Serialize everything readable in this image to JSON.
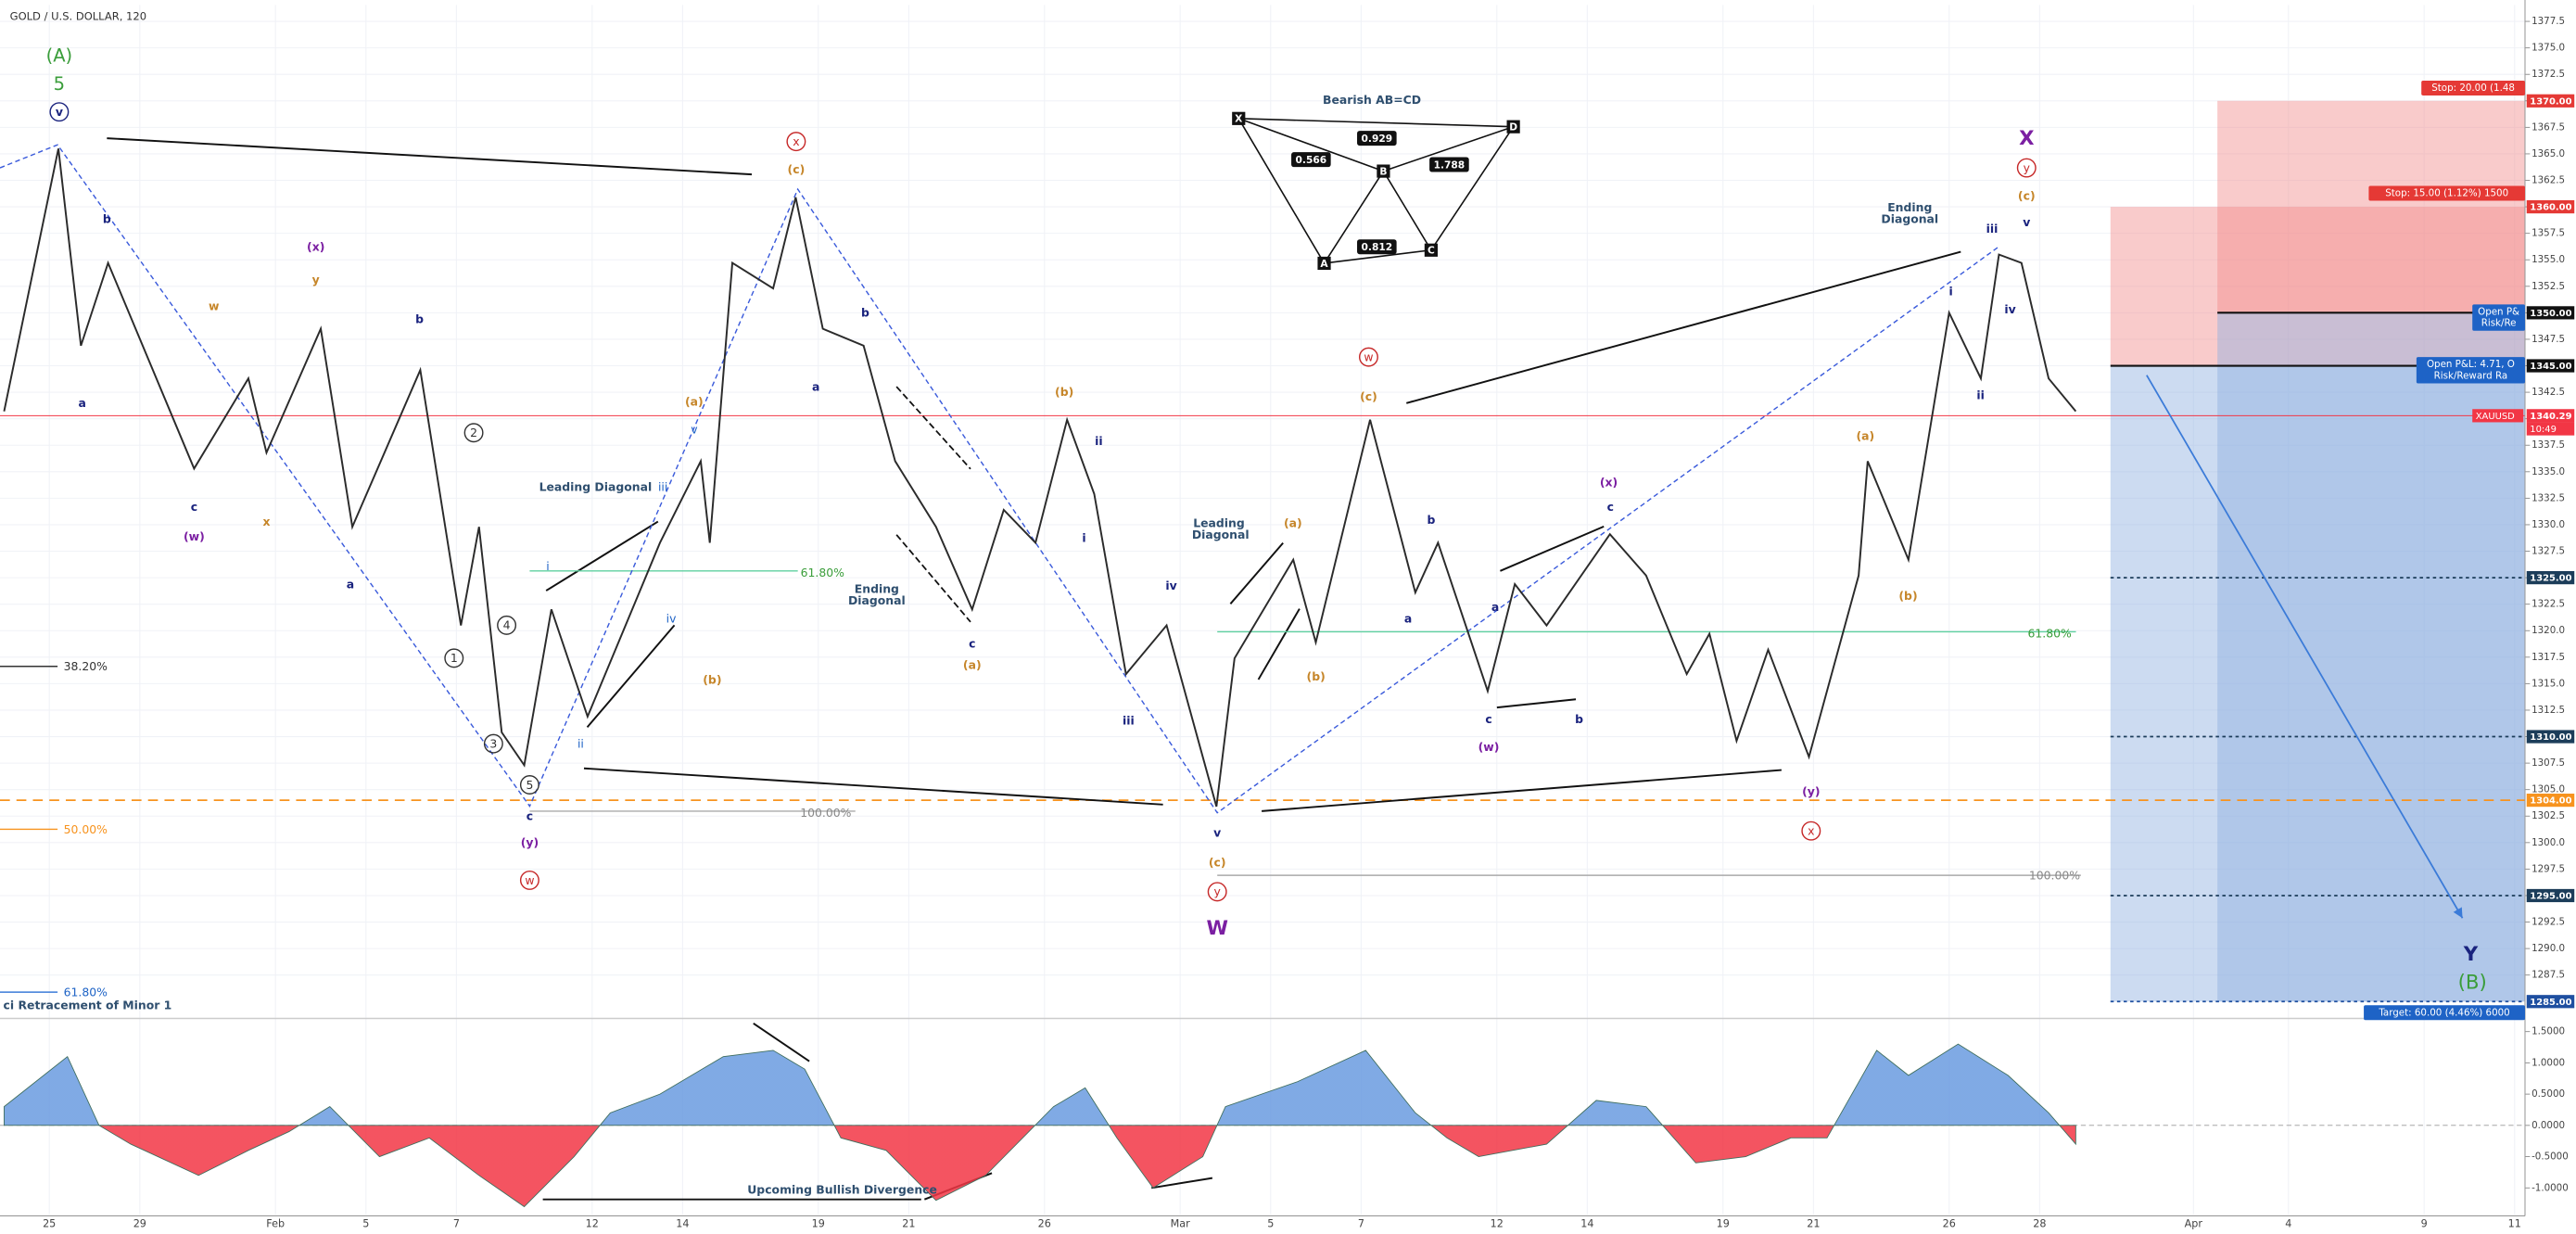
{
  "chart_data": [
    {
      "type": "line",
      "title": "GOLD / U.S. DOLLAR, 120",
      "grid": true,
      "x": [
        -1.0,
        0.2,
        0.7,
        1.3,
        3.2,
        4.4,
        4.8,
        6.0,
        6.7,
        8.2,
        9.1,
        9.5,
        10,
        10.5,
        11.1,
        11.9,
        13.5,
        14.4,
        14.6,
        15.1,
        16,
        16.5,
        17.1,
        18,
        18.7,
        19.6,
        20.4,
        21.1,
        21.8,
        22.5,
        23.1,
        23.8,
        24.7,
        25.8,
        26.2,
        27.5,
        28,
        29.2,
        30.2,
        30.7,
        31.8,
        32.4,
        33.1,
        34.5,
        35.3,
        36.2,
        36.7,
        37.3,
        38,
        38.9,
        40,
        40.2,
        41.1,
        42,
        42.7,
        43.1,
        43.6,
        44.2,
        44.8
      ],
      "series": [
        {
          "name": "XAUUSD",
          "color": "#2b2b2b",
          "values": [
            1340.7,
            1365.5,
            1346.9,
            1354.7,
            1335.3,
            1343.8,
            1336.8,
            1348.5,
            1329.8,
            1344.6,
            1320.5,
            1329.8,
            1310.4,
            1307.3,
            1322,
            1311.9,
            1328.3,
            1336,
            1328.3,
            1354.7,
            1352.3,
            1360.9,
            1348.5,
            1346.9,
            1336,
            1329.8,
            1322,
            1331.4,
            1328.3,
            1339.9,
            1332.9,
            1315.9,
            1320.5,
            1303.4,
            1317.4,
            1326.7,
            1318.9,
            1339.9,
            1323.6,
            1328.3,
            1314.3,
            1324.4,
            1320.5,
            1329.1,
            1325.2,
            1315.9,
            1319.7,
            1309.6,
            1318.2,
            1308.1,
            1325.2,
            1336,
            1326.7,
            1350,
            1343.8,
            1355.5,
            1354.7,
            1343.8,
            1340.7
          ]
        }
      ],
      "xlim": [
        -1.09,
        54.73
      ],
      "xticks": [
        {
          "value": 0,
          "label": "25"
        },
        {
          "value": 2,
          "label": "29"
        },
        {
          "value": 5,
          "label": "Feb"
        },
        {
          "value": 7,
          "label": "5"
        },
        {
          "value": 9,
          "label": "7"
        },
        {
          "value": 12,
          "label": "12"
        },
        {
          "value": 14,
          "label": "14"
        },
        {
          "value": 17,
          "label": "19"
        },
        {
          "value": 19,
          "label": "21"
        },
        {
          "value": 22,
          "label": "26"
        },
        {
          "value": 25,
          "label": "Mar"
        },
        {
          "value": 27,
          "label": "5"
        },
        {
          "value": 29,
          "label": "7"
        },
        {
          "value": 32,
          "label": "12"
        },
        {
          "value": 34,
          "label": "14"
        },
        {
          "value": 37,
          "label": "19"
        },
        {
          "value": 39,
          "label": "21"
        },
        {
          "value": 42,
          "label": "26"
        },
        {
          "value": 44,
          "label": "28"
        },
        {
          "value": 47.4,
          "label": "Apr"
        },
        {
          "value": 49.5,
          "label": "4"
        },
        {
          "value": 52.5,
          "label": "9"
        },
        {
          "value": 54.5,
          "label": "11"
        }
      ],
      "ylim": [
        1283.56,
        1379.05
      ],
      "yticks": [
        1287.5,
        {
          "value": 1290,
          "label": "1290.0"
        },
        1292.5,
        {
          "value": 1295,
          "label": "1295.0"
        },
        1297.5,
        {
          "value": 1300,
          "label": "1300.0"
        },
        1302.5,
        {
          "value": 1305,
          "label": "1305.0"
        },
        1307.5,
        {
          "value": 1310,
          "label": "1310.0"
        },
        1312.5,
        {
          "value": 1315,
          "label": "1315.0"
        },
        1317.5,
        {
          "value": 1320,
          "label": "1320.0"
        },
        1322.5,
        {
          "value": 1325,
          "label": "1325.0"
        },
        1327.5,
        {
          "value": 1330,
          "label": "1330.0"
        },
        1332.5,
        {
          "value": 1335,
          "label": "1335.0"
        },
        1337.5,
        {
          "value": 1340,
          "label": "1340.0"
        },
        1342.5,
        {
          "value": 1345,
          "label": "1345.0"
        },
        1347.5,
        {
          "value": 1350,
          "label": "1350.0"
        },
        1352.5,
        {
          "value": 1355,
          "label": "1355.0"
        },
        1357.5,
        {
          "value": 1360,
          "label": "1360.0"
        },
        1362.5,
        {
          "value": 1365,
          "label": "1365.0"
        },
        1367.5,
        {
          "value": 1370,
          "label": "1370.0"
        },
        1372.5,
        {
          "value": 1375,
          "label": "1375.0"
        },
        1377.5
      ],
      "last_price": {
        "value": 1340.29,
        "label": "1340.29",
        "time": "10:49",
        "color": "#f23645"
      },
      "levels": [
        {
          "value": 1370,
          "label": "1370.00",
          "color": "#e53935",
          "line": "none"
        },
        {
          "value": 1360,
          "label": "1360.00",
          "color": "#e53935",
          "line": "none"
        },
        {
          "value": 1350,
          "label": "1350.00",
          "color": "#111111",
          "line": "solid"
        },
        {
          "value": 1345,
          "label": "1345.00",
          "color": "#111111",
          "line": "solid"
        },
        {
          "value": 1325,
          "label": "1325.00",
          "color": "#1c3d5a",
          "line": "dotted"
        },
        {
          "value": 1310,
          "label": "1310.00",
          "color": "#1c3d5a",
          "line": "dotted"
        },
        {
          "value": 1304,
          "label": "1304.00",
          "color": "#f7931e",
          "line": "dashed"
        },
        {
          "value": 1295,
          "label": "1295.00",
          "color": "#1c3d5a",
          "line": "dotted"
        },
        {
          "value": 1285,
          "label": "1285.00",
          "color": "#1e4fa0",
          "line": "dotted"
        }
      ],
      "trade": {
        "zones": [
          {
            "from": 1345,
            "to": 1360,
            "color": "#f28b8b"
          },
          {
            "from": 1285,
            "to": 1345,
            "color": "#8fb0e0"
          },
          {
            "from": 1350,
            "to": 1370,
            "color": "#f28b8b"
          },
          {
            "from": 1285,
            "to": 1350,
            "color": "#8fb0e0"
          }
        ],
        "stop_long": "Stop: 20.00 (1.48",
        "stop_short": "Stop: 15.00 (1.12%) 1500",
        "pnl_a": "Open P&L: 4.71, O",
        "rr_a": "Risk/Reward Ra",
        "pnl_b": "Open P&",
        "rr_b": "Risk/Re",
        "target": "Target: 60.00 (4.46%) 6000"
      },
      "pattern": {
        "title": "Bearish AB=CD",
        "points": [
          "X",
          "A",
          "B",
          "C",
          "D"
        ],
        "ratios": [
          "0.566",
          "0.929",
          "1.788",
          "0.812"
        ]
      },
      "annotations": [
        "(A)",
        "5",
        "v",
        "b",
        "a",
        "w",
        "(x)",
        "y",
        "c",
        "(w)",
        "x",
        "a",
        "b",
        "2",
        "4",
        "1",
        "3",
        "5",
        "c",
        "(y)",
        "w",
        "i",
        "ii",
        "iii",
        "iv",
        "v",
        "Leading Diagonal",
        "61.80%",
        "(a)",
        "(b)",
        "x",
        "(c)",
        "a",
        "b",
        "Ending",
        "Diagonal",
        "c",
        "(a)",
        "(b)",
        "ii",
        "i",
        "iv",
        "iii",
        "v",
        "(c)",
        "y",
        "W",
        "Leading",
        "Diagonal",
        "(a)",
        "(b)",
        "w",
        "(c)",
        "b",
        "a",
        "a",
        "c",
        "(x)",
        "c",
        "b",
        "(w)",
        "61.80%",
        "(y)",
        "x",
        "(a)",
        "(b)",
        "i",
        "ii",
        "iii",
        "iv",
        "v",
        "Ending",
        "Diagonal",
        "X",
        "y",
        "(c)",
        "Y",
        "(B)",
        "38.20%",
        "50.00%",
        "61.80%",
        "100.00%",
        "100.00%",
        "ci Retracement of Minor 1",
        "Upcoming Bullish Divergence"
      ]
    },
    {
      "type": "area",
      "x": [
        -1.0,
        0.4,
        1.1,
        1.8,
        3.3,
        4.4,
        5.3,
        6.2,
        7.3,
        8.4,
        9.5,
        10.5,
        11.6,
        12.4,
        13.5,
        14.9,
        16,
        16.7,
        17.5,
        18.5,
        19.6,
        20.7,
        22.2,
        22.9,
        23.6,
        24.4,
        25.5,
        26,
        27.6,
        29.1,
        30.2,
        30.9,
        31.6,
        33.1,
        34.2,
        35.3,
        36.4,
        37.5,
        38.5,
        39.3,
        40.4,
        41.1,
        42.2,
        43.3,
        44.2,
        44.8
      ],
      "series": [
        {
          "color": "#6a9be0",
          "negative_color": "#f23645",
          "values": [
            0.3,
            1.1,
            0,
            -0.3,
            -0.8,
            -0.4,
            -0.1,
            0.3,
            -0.5,
            -0.2,
            -0.8,
            -1.3,
            -0.5,
            0.2,
            0.5,
            1.1,
            1.2,
            0.9,
            -0.2,
            -0.4,
            -1.2,
            -0.8,
            0.3,
            0.6,
            -0.2,
            -1.0,
            -0.5,
            0.3,
            0.7,
            1.2,
            0.2,
            -0.2,
            -0.5,
            -0.3,
            0.4,
            0.3,
            -0.6,
            -0.5,
            -0.2,
            -0.2,
            1.2,
            0.8,
            1.3,
            0.8,
            0.2,
            -0.3
          ]
        }
      ],
      "xlim": [
        -1.09,
        54.73
      ],
      "ylim": [
        -1.421,
        1.684
      ],
      "yticks": [
        {
          "value": 1.5,
          "label": "1.5000"
        },
        {
          "value": 1,
          "label": "1.0000"
        },
        {
          "value": 0.5,
          "label": "0.5000"
        },
        {
          "value": 0,
          "label": "0.0000"
        },
        {
          "value": -0.5,
          "label": "-0.5000"
        },
        {
          "value": -1,
          "label": "-1.0000"
        }
      ]
    }
  ]
}
